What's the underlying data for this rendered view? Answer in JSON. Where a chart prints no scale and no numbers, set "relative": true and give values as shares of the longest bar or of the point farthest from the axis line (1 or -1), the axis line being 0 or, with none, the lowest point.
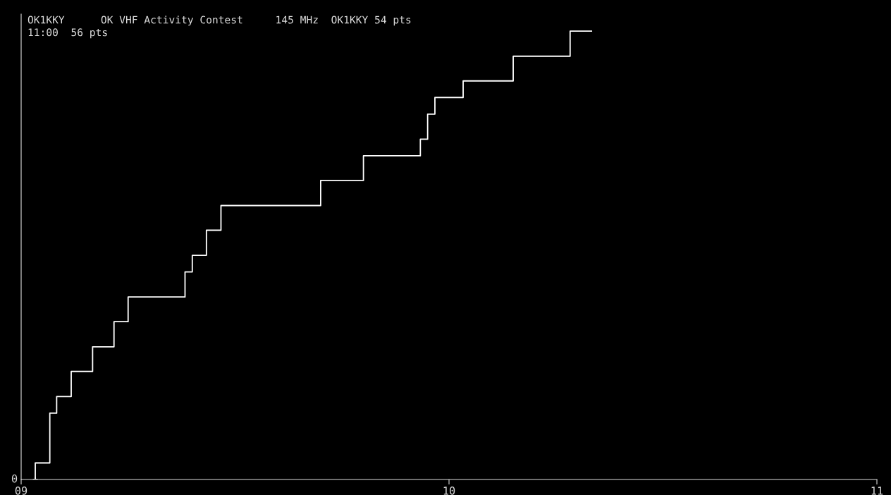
{
  "chart_data": {
    "type": "step",
    "title": "OK1KKY",
    "subtitle": "11:00  56 pts",
    "annotations": [
      "OK VHF Activity Contest",
      "145 MHz  OK1KKY 54 pts",
      "0"
    ],
    "relative": true,
    "x": [
      9.033,
      9.033,
      9.067,
      9.083,
      9.117,
      9.167,
      9.217,
      9.25,
      9.383,
      9.4,
      9.433,
      9.467,
      9.7,
      9.8,
      9.933,
      9.95,
      9.967,
      10.033,
      10.15,
      10.283,
      10.333
    ],
    "series": [
      {
        "color": "#ffffff",
        "values": [
          0,
          0.037,
          0.148,
          0.185,
          0.241,
          0.296,
          0.352,
          0.407,
          0.463,
          0.5,
          0.556,
          0.611,
          0.667,
          0.722,
          0.759,
          0.815,
          0.852,
          0.889,
          0.944,
          1,
          1
        ]
      }
    ],
    "xlim": [
      9,
      11
    ],
    "xticks": [
      {
        "value": 9,
        "label": "09"
      },
      {
        "value": 10,
        "label": "10"
      },
      {
        "value": 11,
        "label": "11"
      }
    ],
    "grid": false,
    "legend": false
  }
}
